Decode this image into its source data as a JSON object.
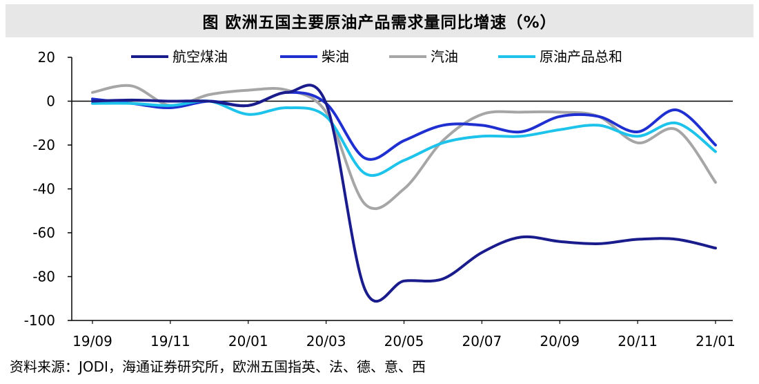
{
  "chart_data": {
    "type": "line",
    "title": "图 欧洲五国主要原油产品需求量同比增速（%）",
    "xlabel": "",
    "ylabel": "",
    "ylim": [
      -100,
      20
    ],
    "yticks": [
      20,
      0,
      -20,
      -40,
      -60,
      -80,
      -100
    ],
    "x_tick_labels": [
      "19/09",
      "19/11",
      "20/01",
      "20/03",
      "20/05",
      "20/07",
      "20/09",
      "20/11",
      "21/01"
    ],
    "x": [
      "19/09",
      "19/10",
      "19/11",
      "19/12",
      "20/01",
      "20/02",
      "20/03",
      "20/04",
      "20/05",
      "20/06",
      "20/07",
      "20/08",
      "20/09",
      "20/10",
      "20/11",
      "20/12",
      "21/01"
    ],
    "grid": false,
    "legend_position": "top",
    "series": [
      {
        "name": "航空煤油",
        "color": "#1a1c8c",
        "values": [
          0,
          0.5,
          0,
          0,
          -2,
          4,
          -1,
          -86,
          -82,
          -81,
          -69,
          -62,
          -64,
          -65,
          -63,
          -63,
          -67
        ]
      },
      {
        "name": "柴油",
        "color": "#1f2fd0",
        "values": [
          1,
          -1,
          -3,
          0,
          -2,
          4,
          -1,
          -26,
          -18,
          -11,
          -11,
          -14,
          -7,
          -7,
          -14,
          -4,
          -20
        ]
      },
      {
        "name": "汽油",
        "color": "#a6a6a6",
        "values": [
          4,
          7,
          -2,
          3,
          5,
          5,
          -5,
          -47,
          -40,
          -18,
          -6,
          -5,
          -5,
          -7,
          -19,
          -13,
          -37
        ]
      },
      {
        "name": "原油产品总和",
        "color": "#1dc3ea",
        "values": [
          -1,
          -1,
          -2,
          0,
          -6,
          -3,
          -7,
          -33,
          -27,
          -19,
          -16,
          -16,
          -13,
          -11,
          -16,
          -10,
          -23
        ]
      }
    ]
  },
  "source_note": "资料来源：JODI，海通证券研究所，欧洲五国指英、法、德、意、西"
}
